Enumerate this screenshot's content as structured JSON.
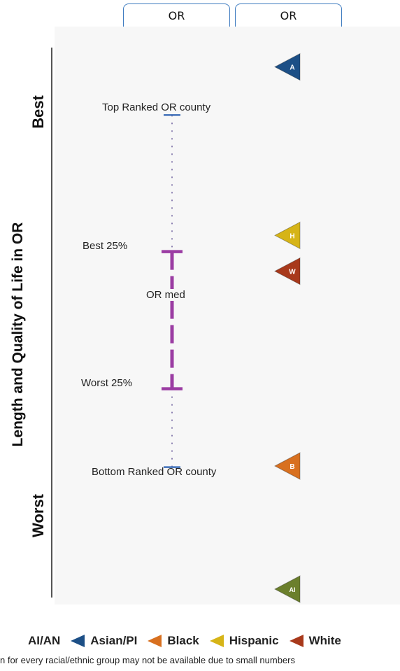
{
  "header": {
    "col_left": "OR",
    "col_right": "OR"
  },
  "axis": {
    "title": "Length and Quality of Life in OR",
    "top_label": "Best",
    "bottom_label": "Worst"
  },
  "chart_data": {
    "type": "scatter",
    "title": "",
    "ylabel": "Length and Quality of Life in OR",
    "scale_note": "relative rank position, 0 = Best (top), 1 = Worst (bottom)",
    "range_labels": {
      "top_county": "Top Ranked OR county",
      "best25": "Best 25%",
      "median": "OR med",
      "worst25": "Worst 25%",
      "bottom_county": "Bottom Ranked OR county"
    },
    "range_values": {
      "top_county": 0.133,
      "best25": 0.377,
      "worst25": 0.622,
      "bottom_county": 0.762
    },
    "groups": [
      {
        "letter": "A",
        "name": "Asian/PI",
        "value": 0.047,
        "color": "#1c4f86"
      },
      {
        "letter": "H",
        "name": "Hispanic",
        "value": 0.348,
        "color": "#d6b417"
      },
      {
        "letter": "W",
        "name": "White",
        "value": 0.412,
        "color": "#a8391b"
      },
      {
        "letter": "B",
        "name": "Black",
        "value": 0.76,
        "color": "#d8701f"
      },
      {
        "letter": "AI",
        "name": "AI/AN",
        "value": 0.98,
        "color": "#6b7f2c"
      }
    ],
    "colors": {
      "range_line": "#9b3ca3",
      "county_cap": "#3f6fb8",
      "dotted_line": "#8a7fb0"
    }
  },
  "legend": {
    "items": [
      {
        "label": "AI/AN",
        "color": "#6b7f2c",
        "show_marker": false
      },
      {
        "label": "Asian/PI",
        "color": "#1c4f86",
        "show_marker": true
      },
      {
        "label": "Black",
        "color": "#d8701f",
        "show_marker": true
      },
      {
        "label": "Hispanic",
        "color": "#d6b417",
        "show_marker": true
      },
      {
        "label": "White",
        "color": "#a8391b",
        "show_marker": true
      }
    ]
  },
  "footnote": "n for every racial/ethnic group may not be available due to small numbers"
}
